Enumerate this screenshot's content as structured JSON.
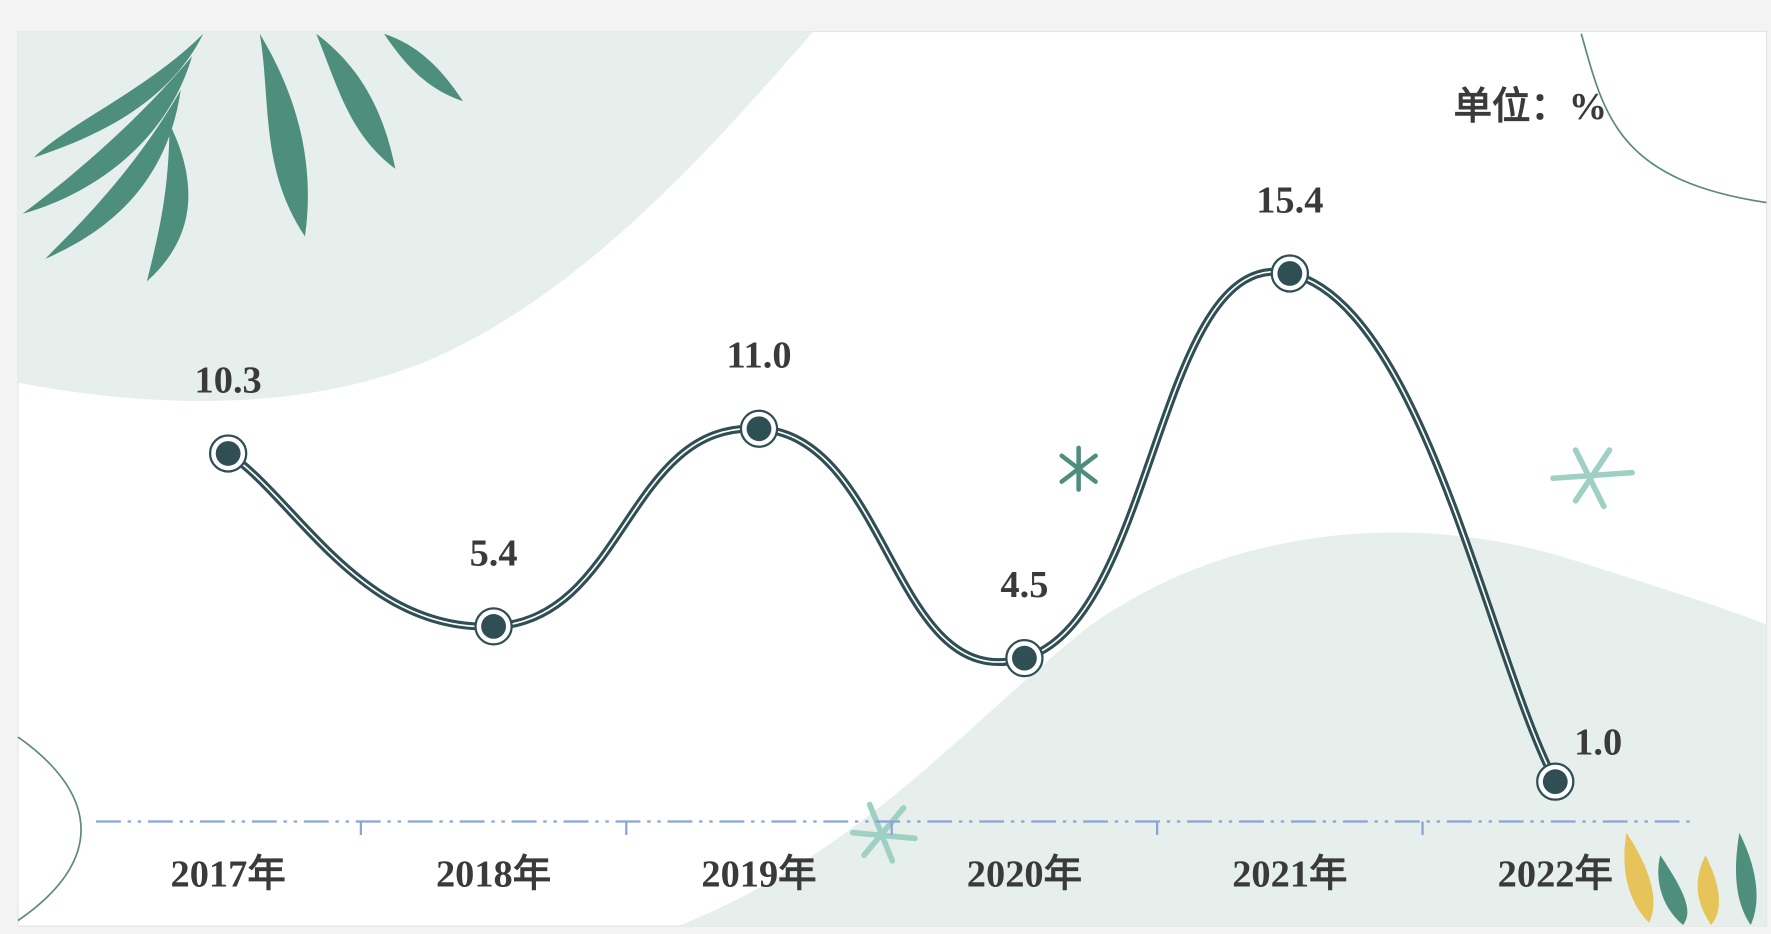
{
  "chart_data": {
    "type": "line",
    "unit": "单位：%",
    "categories": [
      "2017年",
      "2018年",
      "2019年",
      "2020年",
      "2021年",
      "2022年"
    ],
    "values": [
      10.3,
      5.4,
      11.0,
      4.5,
      15.4,
      1.0
    ],
    "value_labels": [
      "10.3",
      "5.4",
      "11.0",
      "4.5",
      "15.4",
      "1.0"
    ],
    "color": "#2f4f55"
  }
}
